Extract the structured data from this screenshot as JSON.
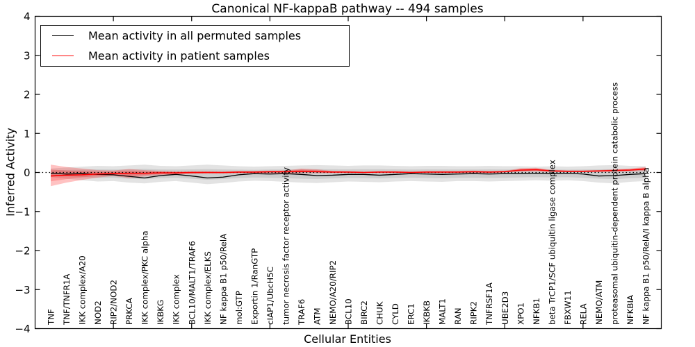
{
  "title": "Canonical NF-kappaB pathway -- 494 samples",
  "chart_data": {
    "type": "line",
    "title": "Canonical NF-kappaB pathway -- 494 samples",
    "xlabel": "Cellular Entities",
    "ylabel": "Inferred Activity",
    "ylim": [
      -4,
      4
    ],
    "yticks": [
      4,
      3,
      2,
      1,
      0,
      -1,
      -2,
      -3,
      -4
    ],
    "ytick_labels": [
      "4",
      "3",
      "2",
      "1",
      "0",
      "−1",
      "−2",
      "−3",
      "−4"
    ],
    "x_major_tick_indices": [
      4,
      9,
      14,
      19,
      24,
      29,
      34
    ],
    "grid": false,
    "legend": {
      "position": "upper left",
      "entries": [
        {
          "label": "Mean activity in all permuted samples",
          "color": "#000000"
        },
        {
          "label": "Mean activity in patient samples",
          "color": "#ff0000"
        }
      ]
    },
    "categories": [
      "TNF",
      "TNF/TNFR1A",
      "IKK complex/A20",
      "NOD2",
      "RIP2/NOD2",
      "PRKCA",
      "IKK complex/PKC alpha",
      "IKBKG",
      "IKK complex",
      "BCL10/MALT1/TRAF6",
      "IKK complex/ELKS",
      "NF kappa B1 p50/RelA",
      "mol:GTP",
      "Exportin 1/RanGTP",
      "cIAP1/UbcH5C",
      "tumor necrosis factor receptor activity",
      "TRAF6",
      "ATM",
      "NEMO/A20/RIP2",
      "BCL10",
      "BIRC2",
      "CHUK",
      "CYLD",
      "ERC1",
      "IKBKB",
      "MALT1",
      "RAN",
      "RIPK2",
      "TNFRSF1A",
      "UBE2D3",
      "XPO1",
      "NFKB1",
      "beta TrCP1/SCF ubiquitin ligase complex",
      "FBXW11",
      "RELA",
      "NEMO/ATM",
      "proteasomal ubiquitin-dependent protein catabolic process",
      "NFKBIA",
      "NF kappa B1 p50/RelA/I kappa B alpha"
    ],
    "series": [
      {
        "name": "Mean activity in all permuted samples",
        "color": "#000000",
        "style": "solid",
        "values": [
          -0.02,
          -0.04,
          -0.03,
          -0.05,
          -0.06,
          -0.1,
          -0.14,
          -0.08,
          -0.05,
          -0.09,
          -0.14,
          -0.12,
          -0.06,
          -0.03,
          -0.04,
          -0.03,
          -0.05,
          -0.08,
          -0.07,
          -0.05,
          -0.05,
          -0.07,
          -0.05,
          -0.03,
          -0.04,
          -0.05,
          -0.04,
          -0.03,
          -0.04,
          -0.03,
          -0.03,
          -0.02,
          -0.03,
          -0.02,
          -0.04,
          -0.09,
          -0.08,
          -0.05,
          -0.03
        ]
      },
      {
        "name": "Mean activity in patient samples",
        "color": "#ff0000",
        "style": "solid",
        "values": [
          -0.09,
          -0.07,
          -0.06,
          -0.04,
          -0.03,
          -0.02,
          -0.02,
          -0.01,
          -0.01,
          0.0,
          0.0,
          0.0,
          0.01,
          0.01,
          0.02,
          0.02,
          0.03,
          0.02,
          0.01,
          0.01,
          0.0,
          0.01,
          0.01,
          0.0,
          0.01,
          0.01,
          0.01,
          0.02,
          0.01,
          0.02,
          0.06,
          0.07,
          0.04,
          0.03,
          0.03,
          0.04,
          0.05,
          0.06,
          0.09
        ]
      }
    ],
    "reference_line": {
      "name": "zero reference",
      "value": 0,
      "style": "dotted",
      "color": "#000000"
    },
    "bands": [
      {
        "name": "permuted-samples-range",
        "color": "#000000",
        "opacity": 0.11,
        "upper": [
          0.1,
          0.13,
          0.15,
          0.17,
          0.16,
          0.18,
          0.2,
          0.17,
          0.16,
          0.18,
          0.2,
          0.18,
          0.16,
          0.15,
          0.16,
          0.17,
          0.18,
          0.19,
          0.18,
          0.17,
          0.18,
          0.18,
          0.17,
          0.16,
          0.17,
          0.17,
          0.16,
          0.16,
          0.17,
          0.16,
          0.16,
          0.15,
          0.16,
          0.15,
          0.16,
          0.18,
          0.19,
          0.17,
          0.16
        ],
        "lower": [
          -0.12,
          -0.16,
          -0.2,
          -0.23,
          -0.22,
          -0.26,
          -0.28,
          -0.24,
          -0.22,
          -0.26,
          -0.3,
          -0.27,
          -0.23,
          -0.21,
          -0.22,
          -0.24,
          -0.26,
          -0.27,
          -0.25,
          -0.23,
          -0.24,
          -0.25,
          -0.23,
          -0.22,
          -0.23,
          -0.24,
          -0.22,
          -0.22,
          -0.23,
          -0.22,
          -0.21,
          -0.2,
          -0.21,
          -0.2,
          -0.22,
          -0.26,
          -0.28,
          -0.24,
          -0.22
        ]
      },
      {
        "name": "patient-samples-range",
        "color": "#ff0000",
        "opacity": 0.24,
        "upper": [
          0.2,
          0.14,
          0.1,
          0.06,
          0.05,
          0.09,
          0.06,
          0.04,
          0.03,
          0.03,
          0.03,
          0.02,
          0.03,
          0.03,
          0.04,
          0.05,
          0.1,
          0.08,
          0.04,
          0.03,
          0.02,
          0.03,
          0.03,
          0.02,
          0.03,
          0.03,
          0.03,
          0.04,
          0.03,
          0.04,
          0.11,
          0.12,
          0.07,
          0.05,
          0.05,
          0.06,
          0.08,
          0.1,
          0.14
        ],
        "lower": [
          -0.35,
          -0.26,
          -0.19,
          -0.13,
          -0.09,
          -0.14,
          -0.1,
          -0.06,
          -0.05,
          -0.04,
          -0.03,
          -0.03,
          -0.02,
          -0.02,
          -0.02,
          -0.03,
          -0.02,
          -0.02,
          -0.01,
          -0.01,
          -0.01,
          -0.01,
          -0.01,
          -0.01,
          -0.01,
          -0.01,
          -0.01,
          -0.01,
          -0.01,
          0.0,
          0.02,
          0.03,
          0.01,
          0.01,
          0.01,
          0.01,
          0.02,
          0.03,
          0.04
        ]
      }
    ]
  }
}
